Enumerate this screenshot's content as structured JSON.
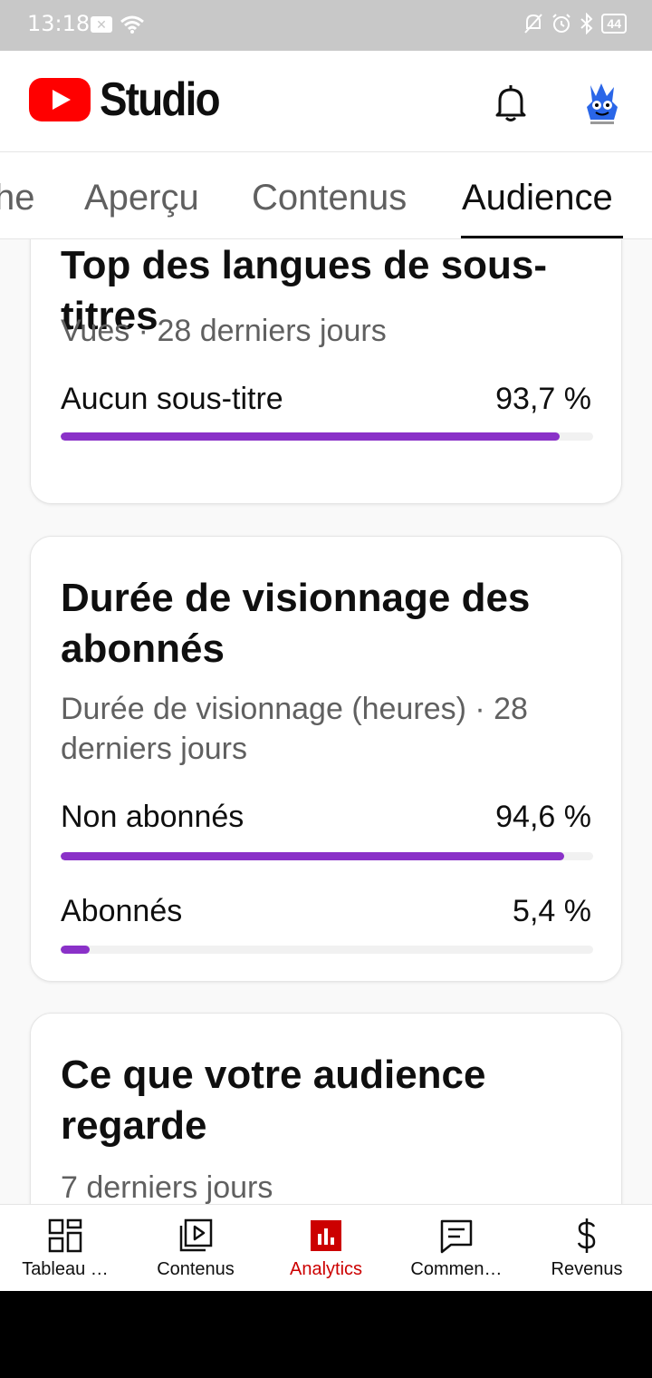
{
  "status_bar": {
    "time": "13:18",
    "battery": "44"
  },
  "header": {
    "logo_text": "Studio"
  },
  "tabs": [
    {
      "label": "he"
    },
    {
      "label": "Aperçu"
    },
    {
      "label": "Contenus"
    },
    {
      "label": "Audience"
    }
  ],
  "cards": [
    {
      "title": "Top des langues de sous-titres",
      "subtitle": "Vues · 28 derniers jours",
      "rows": [
        {
          "label": "Aucun sous-titre",
          "value": "93,7 %",
          "fraction": 0.937
        }
      ]
    },
    {
      "title": "Durée de visionnage des abonnés",
      "subtitle": "Durée de visionnage (heures) · 28 derniers jours",
      "rows": [
        {
          "label": "Non abonnés",
          "value": "94,6 %",
          "fraction": 0.946
        },
        {
          "label": "Abonnés",
          "value": "5,4 %",
          "fraction": 0.054
        }
      ]
    },
    {
      "title": "Ce que votre audience regarde",
      "subtitle": "7 derniers jours"
    }
  ],
  "bottom_nav": [
    {
      "label": "Tableau …",
      "icon": "dashboard-icon"
    },
    {
      "label": "Contenus",
      "icon": "content-icon"
    },
    {
      "label": "Analytics",
      "icon": "analytics-icon",
      "active": true
    },
    {
      "label": "Commen…",
      "icon": "comments-icon"
    },
    {
      "label": "Revenus",
      "icon": "dollar-icon"
    }
  ],
  "colors": {
    "accent": "#8a31c8",
    "brand_red": "#ff0000",
    "active_nav": "#cc0000"
  }
}
